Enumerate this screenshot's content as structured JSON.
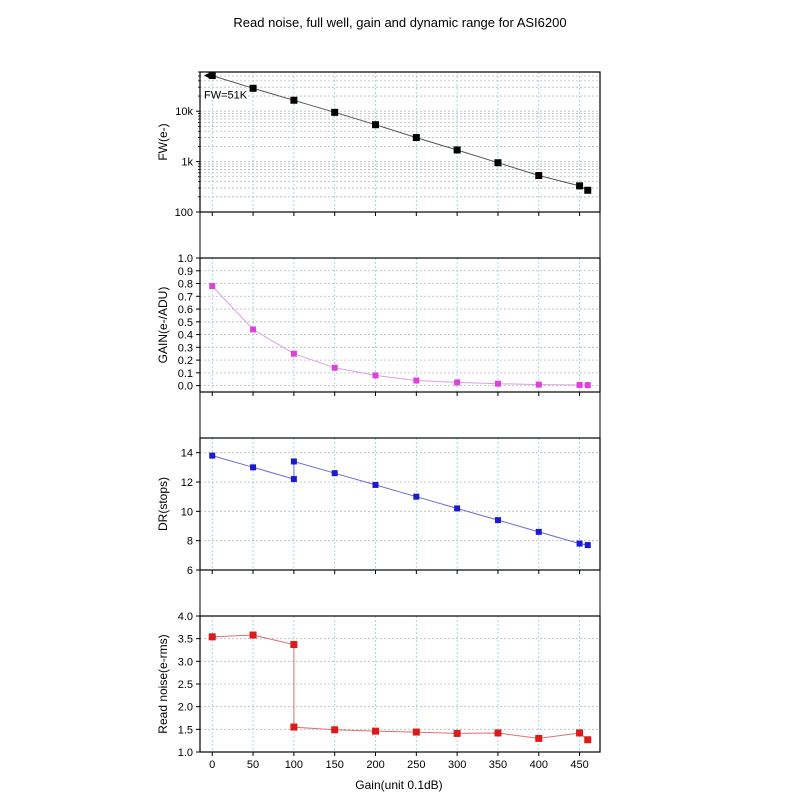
{
  "title": "Read noise, full well, gain and dynamic range for ASI6200",
  "xlabel": "Gain(unit 0.1dB)",
  "colors": {
    "fw": "#000000",
    "gain": "#e040e0",
    "dr": "#1a1ad0",
    "rn": "#dd1a1a",
    "grid": "#b8b8b8",
    "vgrid": "#8fd0e0",
    "line_fw": "#555555",
    "line_gain": "#d9a0e0",
    "line_dr": "#6a6ad8",
    "line_rn": "#e07070"
  },
  "chart_data": [
    {
      "type": "scatter",
      "ylabel": "FW(e-)",
      "yscale": "log",
      "ylim": [
        100,
        60000
      ],
      "xlim": [
        -15,
        475
      ],
      "x": [
        0,
        50,
        100,
        150,
        200,
        250,
        300,
        350,
        400,
        450,
        460
      ],
      "yticks": [
        100,
        1000,
        10000
      ],
      "ytick_labels": [
        "100",
        "1k",
        "10k"
      ],
      "xticks": [
        0,
        50,
        100,
        150,
        200,
        250,
        300,
        350,
        400,
        450
      ],
      "grid": true,
      "annotation": "FW=51K",
      "series": [
        {
          "values": [
            51000,
            28500,
            16500,
            9500,
            5400,
            3000,
            1700,
            950,
            530,
            330,
            270
          ]
        }
      ]
    },
    {
      "type": "scatter",
      "ylabel": "GAIN(e-/ADU)",
      "ylim": [
        -0.05,
        1.0
      ],
      "xlim": [
        -15,
        475
      ],
      "x": [
        0,
        50,
        100,
        150,
        200,
        250,
        300,
        350,
        400,
        450,
        460
      ],
      "yticks": [
        0.0,
        0.1,
        0.2,
        0.3,
        0.4,
        0.5,
        0.6,
        0.7,
        0.8,
        0.9,
        1.0
      ],
      "ytick_labels": [
        "0.0",
        "0.1",
        "0.2",
        "0.3",
        "0.4",
        "0.5",
        "0.6",
        "0.7",
        "0.8",
        "0.9",
        "1.0"
      ],
      "xticks": [
        0,
        50,
        100,
        150,
        200,
        250,
        300,
        350,
        400,
        450
      ],
      "grid": true,
      "series": [
        {
          "values": [
            0.78,
            0.44,
            0.25,
            0.14,
            0.08,
            0.04,
            0.025,
            0.015,
            0.008,
            0.005,
            0.004
          ]
        }
      ]
    },
    {
      "type": "scatter",
      "ylabel": "DR(stops)",
      "ylim": [
        6,
        15
      ],
      "xlim": [
        -15,
        475
      ],
      "x": [
        0,
        50,
        100,
        100,
        150,
        200,
        250,
        300,
        350,
        400,
        450,
        460
      ],
      "yticks": [
        6,
        8,
        10,
        12,
        14
      ],
      "ytick_labels": [
        "6",
        "8",
        "10",
        "12",
        "14"
      ],
      "xticks": [
        0,
        50,
        100,
        150,
        200,
        250,
        300,
        350,
        400,
        450
      ],
      "grid": true,
      "series": [
        {
          "values": [
            13.8,
            13.0,
            12.2,
            13.4,
            12.6,
            11.8,
            11.0,
            10.2,
            9.4,
            8.6,
            7.8,
            7.7
          ]
        }
      ]
    },
    {
      "type": "scatter",
      "ylabel": "Read noise(e-rms)",
      "ylim": [
        1.0,
        4.0
      ],
      "xlim": [
        -15,
        475
      ],
      "x": [
        0,
        50,
        100,
        100,
        150,
        200,
        250,
        300,
        350,
        400,
        450,
        460
      ],
      "yticks": [
        1.0,
        1.5,
        2.0,
        2.5,
        3.0,
        3.5,
        4.0
      ],
      "ytick_labels": [
        "1.0",
        "1.5",
        "2.0",
        "2.5",
        "3.0",
        "3.5",
        "4.0"
      ],
      "xticks": [
        0,
        50,
        100,
        150,
        200,
        250,
        300,
        350,
        400,
        450
      ],
      "xtick_labels": [
        "0",
        "50",
        "100",
        "150",
        "200",
        "250",
        "300",
        "350",
        "400",
        "450"
      ],
      "grid": true,
      "series": [
        {
          "values": [
            3.54,
            3.58,
            3.37,
            1.55,
            1.49,
            1.46,
            1.44,
            1.41,
            1.42,
            1.3,
            1.42,
            1.27
          ]
        }
      ]
    }
  ]
}
